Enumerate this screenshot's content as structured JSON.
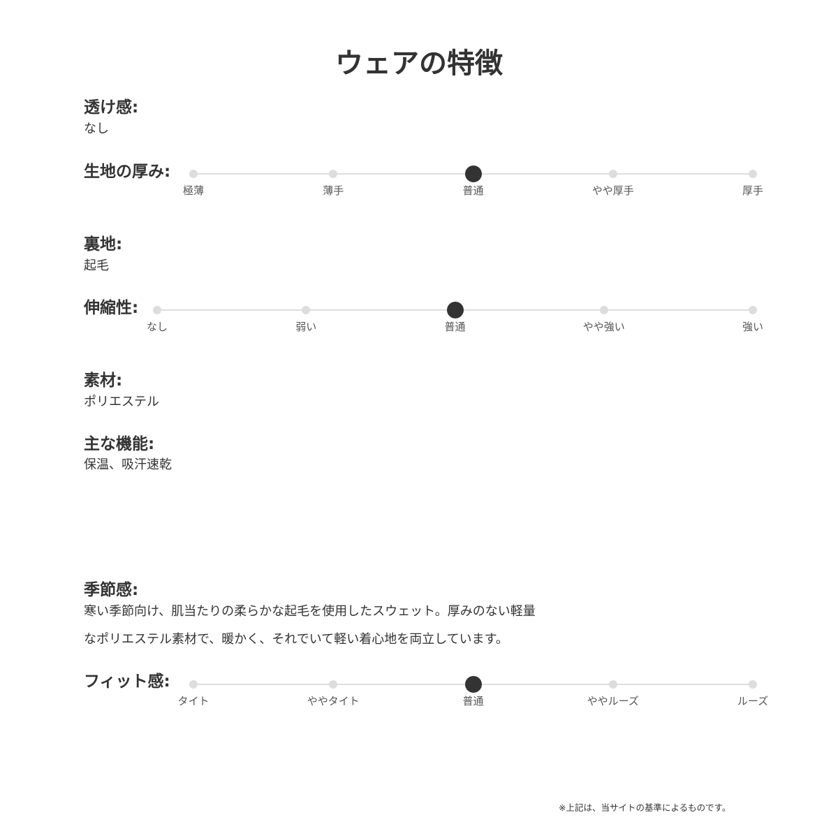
{
  "title": "ウェアの特徴",
  "transparency": {
    "label": "透け感:",
    "value": "なし"
  },
  "thickness": {
    "label": "生地の厚み:",
    "options": [
      "極薄",
      "薄手",
      "普通",
      "やや厚手",
      "厚手"
    ],
    "selected_index": 2
  },
  "lining": {
    "label": "裏地:",
    "value": "起毛"
  },
  "stretch": {
    "label": "伸縮性:",
    "options": [
      "なし",
      "弱い",
      "普通",
      "やや強い",
      "強い"
    ],
    "selected_index": 2
  },
  "material": {
    "label": "素材:",
    "value": "ポリエステル"
  },
  "functions": {
    "label": "主な機能:",
    "value": "保温、吸汗速乾"
  },
  "season": {
    "label": "季節感:",
    "lines": [
      "寒い季節向け、肌当たりの柔らかな起毛を使用したスウェット。厚みのない軽量",
      "なポリエステル素材で、暖かく、それでいて軽い着心地を両立しています。"
    ]
  },
  "fit": {
    "label": "フィット感:",
    "options": [
      "タイト",
      "ややタイト",
      "普通",
      "ややルーズ",
      "ルーズ"
    ],
    "selected_index": 2
  },
  "note": "※上記は、当サイトの基準によるものです。",
  "colors": {
    "selected": "#333333",
    "unselected": "#dddddd"
  }
}
